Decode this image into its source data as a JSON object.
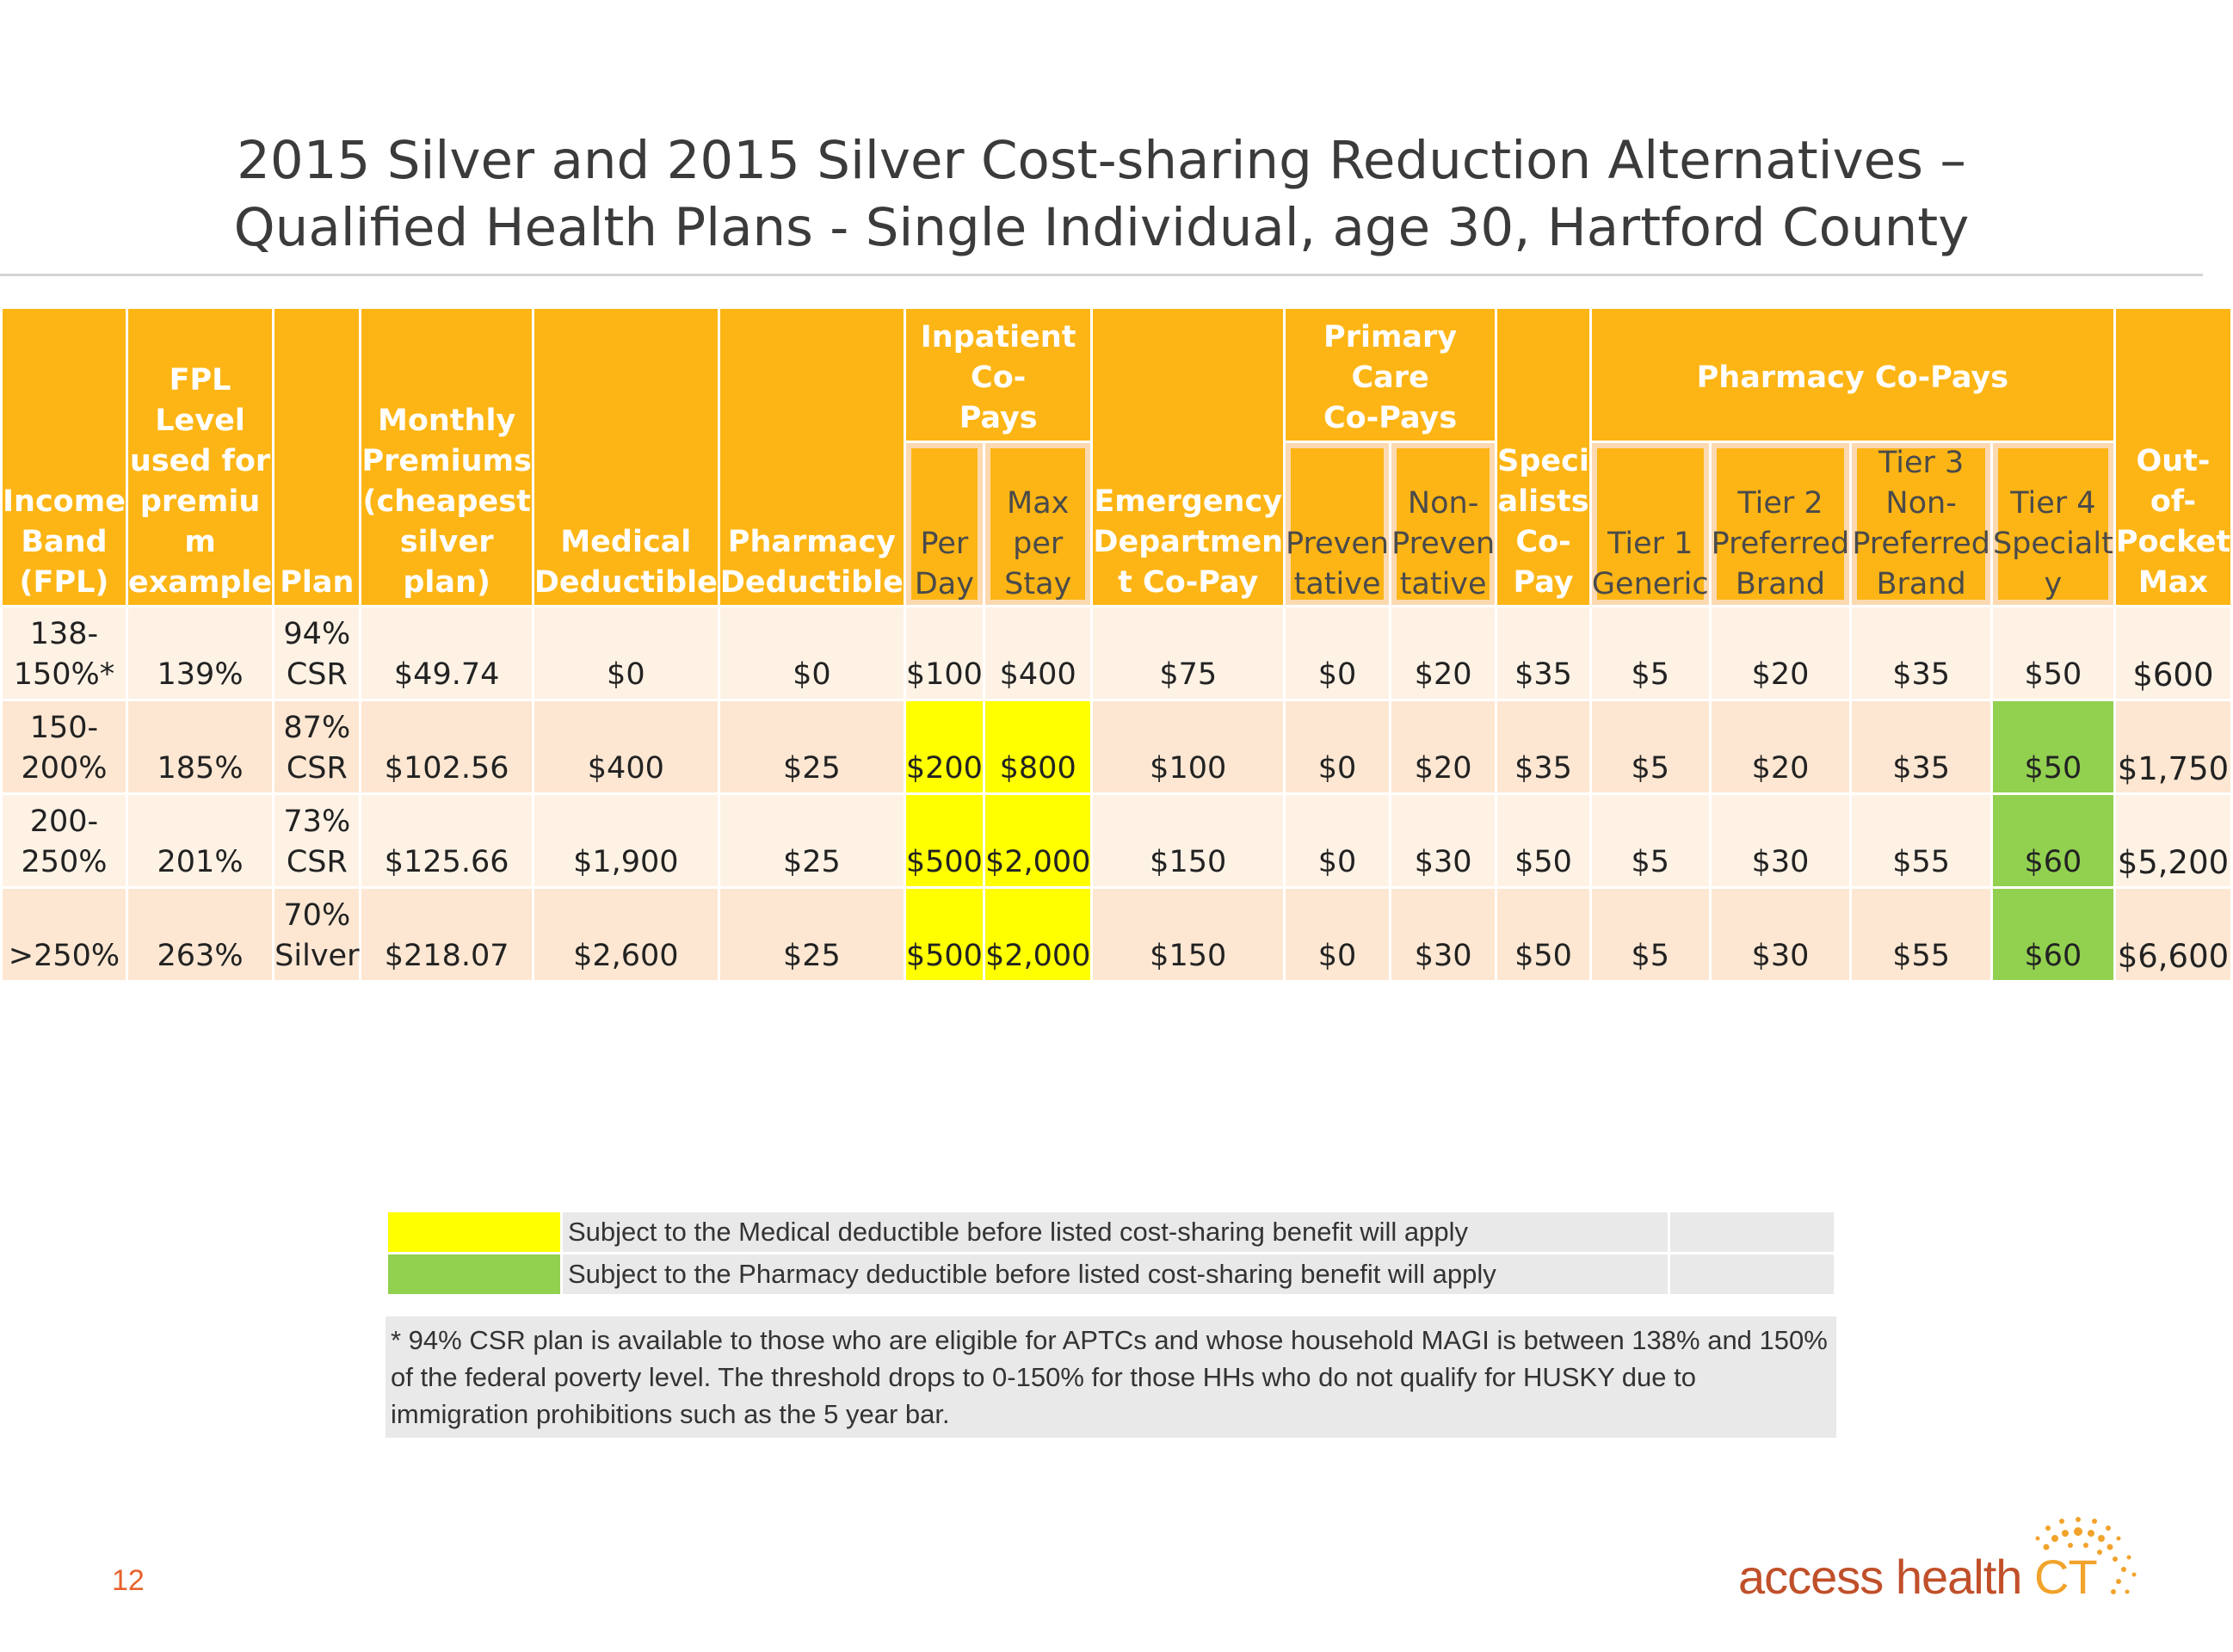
{
  "title": {
    "line1": "2015 Silver and 2015 Silver Cost-sharing Reduction Alternatives –",
    "line2": "Qualified Health Plans - Single Individual, age 30, Hartford County"
  },
  "headers": {
    "income_band": [
      "Income",
      "Band",
      "(FPL)"
    ],
    "fpl_level": [
      "FPL",
      "Level",
      "used for",
      "premiu",
      "m",
      "example"
    ],
    "plan": [
      "Plan"
    ],
    "monthly_premiums": [
      "Monthly",
      "Premiums",
      "(cheapest",
      "silver",
      "plan)"
    ],
    "medical_deductible": [
      "Medical",
      "Deductible"
    ],
    "pharmacy_deductible": [
      "Pharmacy",
      "Deductible"
    ],
    "inpatient_group": [
      "Inpatient Co-",
      "Pays"
    ],
    "inpatient_per_day": [
      "Per",
      "Day"
    ],
    "inpatient_max_stay": [
      "Max per",
      "Stay"
    ],
    "emergency": [
      "Emergency",
      "Departmen",
      "t Co-Pay"
    ],
    "primary_care_group": [
      "Primary Care",
      "Co-Pays"
    ],
    "preventative": [
      "Preven",
      "tative"
    ],
    "non_preventative": [
      "Non-",
      "Preven",
      "tative"
    ],
    "specialists": [
      "Speci",
      "alists",
      "Co-",
      "Pay"
    ],
    "pharmacy_group": [
      "Pharmacy Co-Pays"
    ],
    "tier1": [
      "Tier 1",
      "Generic"
    ],
    "tier2": [
      "Tier 2",
      "Preferred",
      "Brand"
    ],
    "tier3": [
      "Tier 3 Non-",
      "Preferred",
      "Brand"
    ],
    "tier4": [
      "Tier 4",
      "Specialt",
      "y"
    ],
    "oop_max": [
      "Out-of-",
      "Pocket",
      "Max"
    ]
  },
  "rows": [
    {
      "income_band": [
        "138-",
        "150%*"
      ],
      "fpl": "139%",
      "plan": [
        "94%",
        "CSR"
      ],
      "premium": "$49.74",
      "med_ded": "$0",
      "pharm_ded": "$0",
      "per_day": "$100",
      "max_stay": "$400",
      "er": "$75",
      "prev": "$0",
      "nonprev": "$20",
      "spec": "$35",
      "t1": "$5",
      "t2": "$20",
      "t3": "$35",
      "t4": "$50",
      "oop": "$600",
      "inpatient_highlight": false,
      "tier4_highlight": false
    },
    {
      "income_band": [
        "150-",
        "200%"
      ],
      "fpl": "185%",
      "plan": [
        "87%",
        "CSR"
      ],
      "premium": "$102.56",
      "med_ded": "$400",
      "pharm_ded": "$25",
      "per_day": "$200",
      "max_stay": "$800",
      "er": "$100",
      "prev": "$0",
      "nonprev": "$20",
      "spec": "$35",
      "t1": "$5",
      "t2": "$20",
      "t3": "$35",
      "t4": "$50",
      "oop": "$1,750",
      "inpatient_highlight": true,
      "tier4_highlight": true
    },
    {
      "income_band": [
        "200-",
        "250%"
      ],
      "fpl": "201%",
      "plan": [
        "73%",
        "CSR"
      ],
      "premium": "$125.66",
      "med_ded": "$1,900",
      "pharm_ded": "$25",
      "per_day": "$500",
      "max_stay": "$2,000",
      "er": "$150",
      "prev": "$0",
      "nonprev": "$30",
      "spec": "$50",
      "t1": "$5",
      "t2": "$30",
      "t3": "$55",
      "t4": "$60",
      "oop": "$5,200",
      "inpatient_highlight": true,
      "tier4_highlight": true
    },
    {
      "income_band": [
        ">250%"
      ],
      "fpl": "263%",
      "plan": [
        "70%",
        "Silver"
      ],
      "premium": "$218.07",
      "med_ded": "$2,600",
      "pharm_ded": "$25",
      "per_day": "$500",
      "max_stay": "$2,000",
      "er": "$150",
      "prev": "$0",
      "nonprev": "$30",
      "spec": "$50",
      "t1": "$5",
      "t2": "$30",
      "t3": "$55",
      "t4": "$60",
      "oop": "$6,600",
      "inpatient_highlight": true,
      "tier4_highlight": true
    }
  ],
  "legend": [
    {
      "color": "#ffff00",
      "text": "Subject to the Medical deductible before listed cost-sharing benefit will apply"
    },
    {
      "color": "#92d050",
      "text": "Subject to the Pharmacy deductible before listed cost-sharing benefit will apply"
    }
  ],
  "footnote": "* 94% CSR plan is available to those who are eligible for APTCs and whose household MAGI is between 138% and 150% of the federal poverty level. The threshold drops to 0-150% for those HHs who do not qualify for HUSKY due to immigration prohibitions such as the 5 year bar.",
  "page_number": "12",
  "logo": {
    "text": "access health",
    "suffix": "CT"
  },
  "colors": {
    "header": "#fdb515",
    "highlight_medical": "#ffff00",
    "highlight_pharmacy": "#92d050",
    "row_light": "#fef2e5",
    "row_dark": "#fde7d2"
  }
}
